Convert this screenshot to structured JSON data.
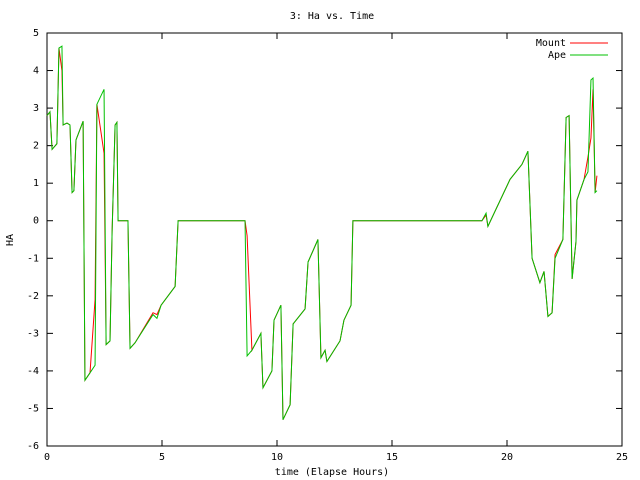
{
  "chart_data": {
    "type": "line",
    "title": "3: Ha vs. Time",
    "x_label": "time (Elapse Hours)",
    "y_label": "HA",
    "legend": "upper right",
    "x": [
      0,
      0.13,
      0.22,
      0.43,
      0.52,
      0.65,
      0.7,
      0.87,
      1.0,
      1.09,
      1.17,
      1.26,
      1.57,
      1.65,
      1.87,
      2.09,
      2.17,
      2.48,
      2.57,
      2.74,
      2.83,
      2.96,
      3.04,
      3.09,
      3.52,
      3.61,
      3.83,
      4.61,
      4.78,
      4.96,
      5.57,
      5.7,
      8.61,
      8.7,
      8.91,
      9.3,
      9.39,
      9.78,
      9.87,
      10.17,
      10.26,
      10.57,
      10.7,
      11.22,
      11.35,
      11.78,
      11.91,
      12.09,
      12.17,
      12.74,
      12.91,
      13.22,
      13.3,
      18.91,
      19.09,
      19.17,
      20.13,
      20.65,
      20.91,
      21.09,
      21.43,
      21.61,
      21.78,
      21.96,
      22.09,
      22.43,
      22.57,
      22.7,
      22.83,
      23.0,
      23.04,
      23.35,
      23.52,
      23.65,
      23.74,
      23.83,
      23.91
    ],
    "series": [
      {
        "name": "Mount",
        "color": "#ff0000",
        "values": [
          2.8,
          2.9,
          1.9,
          2.05,
          4.6,
          4.0,
          2.55,
          2.6,
          2.55,
          0.75,
          0.8,
          2.15,
          2.65,
          -4.25,
          -4.05,
          -2.1,
          3.1,
          1.8,
          -3.3,
          -3.2,
          -0.3,
          2.55,
          2.62,
          0,
          0,
          -3.4,
          -3.25,
          -2.45,
          -2.5,
          -2.25,
          -1.75,
          0,
          0,
          -0.4,
          -3.45,
          -3.0,
          -4.45,
          -4.0,
          -2.65,
          -2.25,
          -5.3,
          -4.9,
          -2.75,
          -2.35,
          -1.1,
          -0.5,
          -3.65,
          -3.45,
          -3.75,
          -3.2,
          -2.65,
          -2.25,
          0,
          0,
          0.15,
          -0.15,
          1.1,
          1.5,
          1.85,
          -1.0,
          -1.65,
          -1.35,
          -2.55,
          -2.45,
          -0.9,
          -0.5,
          2.75,
          2.8,
          -1.55,
          -0.55,
          0.55,
          1.1,
          1.7,
          2.2,
          3.5,
          0.75,
          1.2
        ]
      },
      {
        "name": "Ape",
        "color": "#00c000",
        "values": [
          2.8,
          2.9,
          1.9,
          2.05,
          4.6,
          4.65,
          2.55,
          2.6,
          2.55,
          0.75,
          0.8,
          2.15,
          2.65,
          -4.25,
          -4.05,
          -3.85,
          3.1,
          3.5,
          -3.3,
          -3.2,
          -0.3,
          2.55,
          2.62,
          0,
          0,
          -3.4,
          -3.25,
          -2.5,
          -2.6,
          -2.25,
          -1.75,
          0,
          0,
          -3.6,
          -3.45,
          -3.0,
          -4.45,
          -4.0,
          -2.65,
          -2.25,
          -5.3,
          -4.9,
          -2.75,
          -2.35,
          -1.1,
          -0.5,
          -3.65,
          -3.45,
          -3.75,
          -3.2,
          -2.65,
          -2.25,
          0,
          0,
          0.2,
          -0.15,
          1.1,
          1.5,
          1.85,
          -1.0,
          -1.65,
          -1.35,
          -2.55,
          -2.45,
          -1.0,
          -0.5,
          2.75,
          2.8,
          -1.55,
          -0.55,
          0.55,
          1.1,
          1.3,
          3.75,
          3.8,
          0.75,
          0.8
        ]
      }
    ],
    "xlim": [
      0,
      25
    ],
    "xticks": [
      0,
      5,
      10,
      15,
      20,
      25
    ],
    "ylim": [
      -6,
      5
    ],
    "yticks": [
      -6,
      -5,
      -4,
      -3,
      -2,
      -1,
      0,
      1,
      2,
      3,
      4,
      5
    ]
  }
}
